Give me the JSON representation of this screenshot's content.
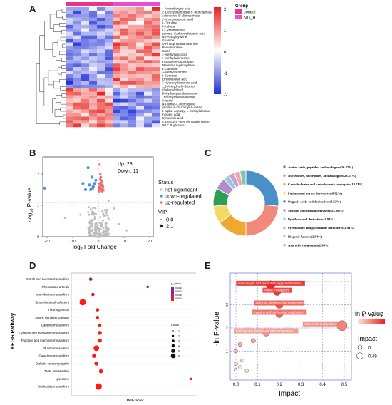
{
  "panels": {
    "a": "A",
    "b": "B",
    "c": "C",
    "d": "D",
    "e": "E"
  },
  "heatmap": {
    "legend_title": "Group",
    "groups": [
      {
        "name": "control",
        "color": "#e8338f"
      },
      {
        "name": "NTs_H",
        "color": "#e64fd3"
      }
    ],
    "scale_ticks": [
      "2",
      "1",
      "0",
      "-1",
      "-2"
    ],
    "n_control": 6,
    "n_treat": 6,
    "metabolites": [
      "4-Aminobutyric acid",
      "2'-Deoxyguanosine-5'-diphosphate",
      "Adenosine-5'-diphosphate",
      "2-Aminooctanoic acid",
      "L-Citrulline",
      "Pyridoxal",
      "L-Cystathionine",
      "gamma-Carboxyglutamic acid",
      "N4-Acetylcytidine",
      "Guanine",
      "O-Phosphoethanolamine",
      "Pseudouridine",
      "Uracil",
      "1-Methyluric acid",
      "1-Methyladenosine",
      "Fructose 6-phosphate",
      "Mannose 6-phosphate",
      "L-Carnitine",
      "3-Methylxanthine",
      "L-Sorbose",
      "Ethylmalonic acid",
      "3-Hydroxydecanoic acid",
      "1,5-Anhydro-D-Glucitol",
      "Cholecalciferol",
      "Dehydroepiandrosterone",
      "Threonylphenylalanine",
      "Sorbitol",
      "N-Formyl-L-methionine",
      "gamma-L-Glutamyl-L-valine",
      "L-alpha-Aspartyl-L-phenylalanine",
      "Inosinic acid",
      "Kynurenic acid",
      "5'-Deoxy-5'-methylthioadenosine",
      "UDP-D-glucose"
    ]
  },
  "volcano": {
    "up_text": "Up: 23",
    "down_text": "Down: 11",
    "xlabel": "log2 Fold Change",
    "xlabel_main": "log",
    "xlabel_sub": "2",
    "xlabel_tail": " Fold Change",
    "ylabel_main": "-log",
    "ylabel_sub": "10",
    "ylabel_tail": " P-value",
    "xticks": [
      "-20",
      "-10",
      "0",
      "10",
      "20"
    ],
    "yticks": [
      "0",
      "1",
      "2"
    ],
    "status_title": "Status",
    "status_items": [
      {
        "label": "not significant",
        "color": "#bdbdbd"
      },
      {
        "label": "down-regulated",
        "color": "#4a90e2"
      },
      {
        "label": "up-regulated",
        "color": "#ef6b6b"
      }
    ],
    "vip_title": "VIP",
    "vip_items": [
      "0.0",
      "2.1"
    ]
  },
  "chart_data": [
    {
      "type": "pie",
      "donut": true,
      "categories": [
        "Amino acids, peptides, and analogues(26.47%)",
        "Nucleosides, nucleotides, and analogues(23.53%)",
        "Carbohydrates and carbohydrate conjugates(14.71%)",
        "Purines and purine derivatives(8.82%)",
        "Organic acids and derivatives(8.82%)",
        "Steroids and steroid derivatives(5.88%)",
        "Pyridines and derivatives(2.94%)",
        "Pyrimidines and pyrimidine derivatives(2.94%)",
        "Biogenic Amines(2.94%)",
        "Azacyclic compounds(2.94%)"
      ],
      "values": [
        26.47,
        23.53,
        14.71,
        8.82,
        8.82,
        5.88,
        2.94,
        2.94,
        2.94,
        2.94
      ],
      "colors": [
        "#4a90c8",
        "#f08a7a",
        "#f0a830",
        "#f5d86a",
        "#2e9e55",
        "#b58acb",
        "#8fcbe8",
        "#c8a2c8",
        "#f4a6b8",
        "#7fc7a8"
      ]
    },
    {
      "type": "scatter",
      "title": "KEGG Pathway",
      "xlabel": "Rich factor",
      "ylabel": "KEGG Pathway",
      "categories": [
        "Starch and sucrose metabolism",
        "Rheumatoid arthritis",
        "beta-Alanine metabolism",
        "Biosynthesis of cofactors",
        "Thermogenesis",
        "AMPK signaling pathway",
        "Caffeine metabolism",
        "Cysteine and methionine metabolism",
        "Fructose and mannose metabolism",
        "Purine metabolism",
        "Galactose metabolism",
        "Diabetic cardiomyopathy",
        "Taste transduction",
        "Lysosome",
        "Nucleotide metabolism"
      ],
      "rich_factor": [
        0.12,
        0.62,
        0.14,
        0.05,
        0.18,
        0.18,
        0.2,
        0.2,
        0.2,
        0.17,
        0.15,
        0.17,
        0.21,
        1.0,
        0.19
      ],
      "count": [
        2,
        1,
        2,
        6,
        2,
        2,
        2,
        3,
        3,
        5,
        3,
        3,
        3,
        1,
        6
      ],
      "p_value": [
        0.012,
        0.016,
        0.006,
        0.003,
        0.003,
        0.003,
        0.003,
        0.003,
        0.003,
        0.003,
        0.003,
        0.003,
        0.003,
        0.003,
        0.003
      ],
      "legend_p_title": "p_value",
      "legend_p_ticks": [
        "0.016",
        "0.012",
        "0.008",
        "0.004"
      ],
      "legend_count_title": "Count",
      "legend_count_ticks": [
        "1",
        "2",
        "3",
        "4",
        "5",
        "6"
      ]
    },
    {
      "type": "scatter",
      "xlabel": "Impact",
      "ylabel": "-ln P-value",
      "xticks": [
        "0.0",
        "0.1",
        "0.2",
        "0.3",
        "0.4",
        "0.5"
      ],
      "yticks": [
        "1",
        "2",
        "3"
      ],
      "legend_color_title": "-ln P-value",
      "legend_color_ticks": [
        "1",
        "2",
        "3"
      ],
      "legend_size_title": "Impact",
      "legend_size_ticks": [
        "0",
        "0.49"
      ],
      "points": [
        {
          "label": "Amino sugar and nucleotide sugar metabolism",
          "x": 0.16,
          "y": 3.85,
          "r": 6
        },
        {
          "label": "Purine metabolism",
          "x": 0.19,
          "y": 3.55,
          "r": 5
        },
        {
          "label": "Fructose and mannose metabolism",
          "x": 0.2,
          "y": 3.0,
          "r": 5
        },
        {
          "label": "Cysteine and methionine metabolism",
          "x": 0.2,
          "y": 2.6,
          "r": 5
        },
        {
          "label": "Vitamin B6 metabolism",
          "x": 0.49,
          "y": 2.1,
          "r": 7
        },
        {
          "label": "Pentose and glucuronate interconversions",
          "x": 0.14,
          "y": 1.8,
          "r": 5
        },
        {
          "label": "",
          "x": 0.08,
          "y": 1.45,
          "r": 3
        },
        {
          "label": "",
          "x": 0.02,
          "y": 1.3,
          "r": 3
        },
        {
          "label": "",
          "x": 0.0,
          "y": 1.0,
          "r": 2.5
        },
        {
          "label": "",
          "x": 0.03,
          "y": 0.6,
          "r": 2.5
        },
        {
          "label": "",
          "x": 0.0,
          "y": 0.45,
          "r": 2.5
        },
        {
          "label": "",
          "x": 0.02,
          "y": 0.3,
          "r": 2.5
        },
        {
          "label": "",
          "x": 0.0,
          "y": 0.2,
          "r": 2
        },
        {
          "label": "",
          "x": 0.05,
          "y": 0.15,
          "r": 2.5
        }
      ]
    }
  ]
}
